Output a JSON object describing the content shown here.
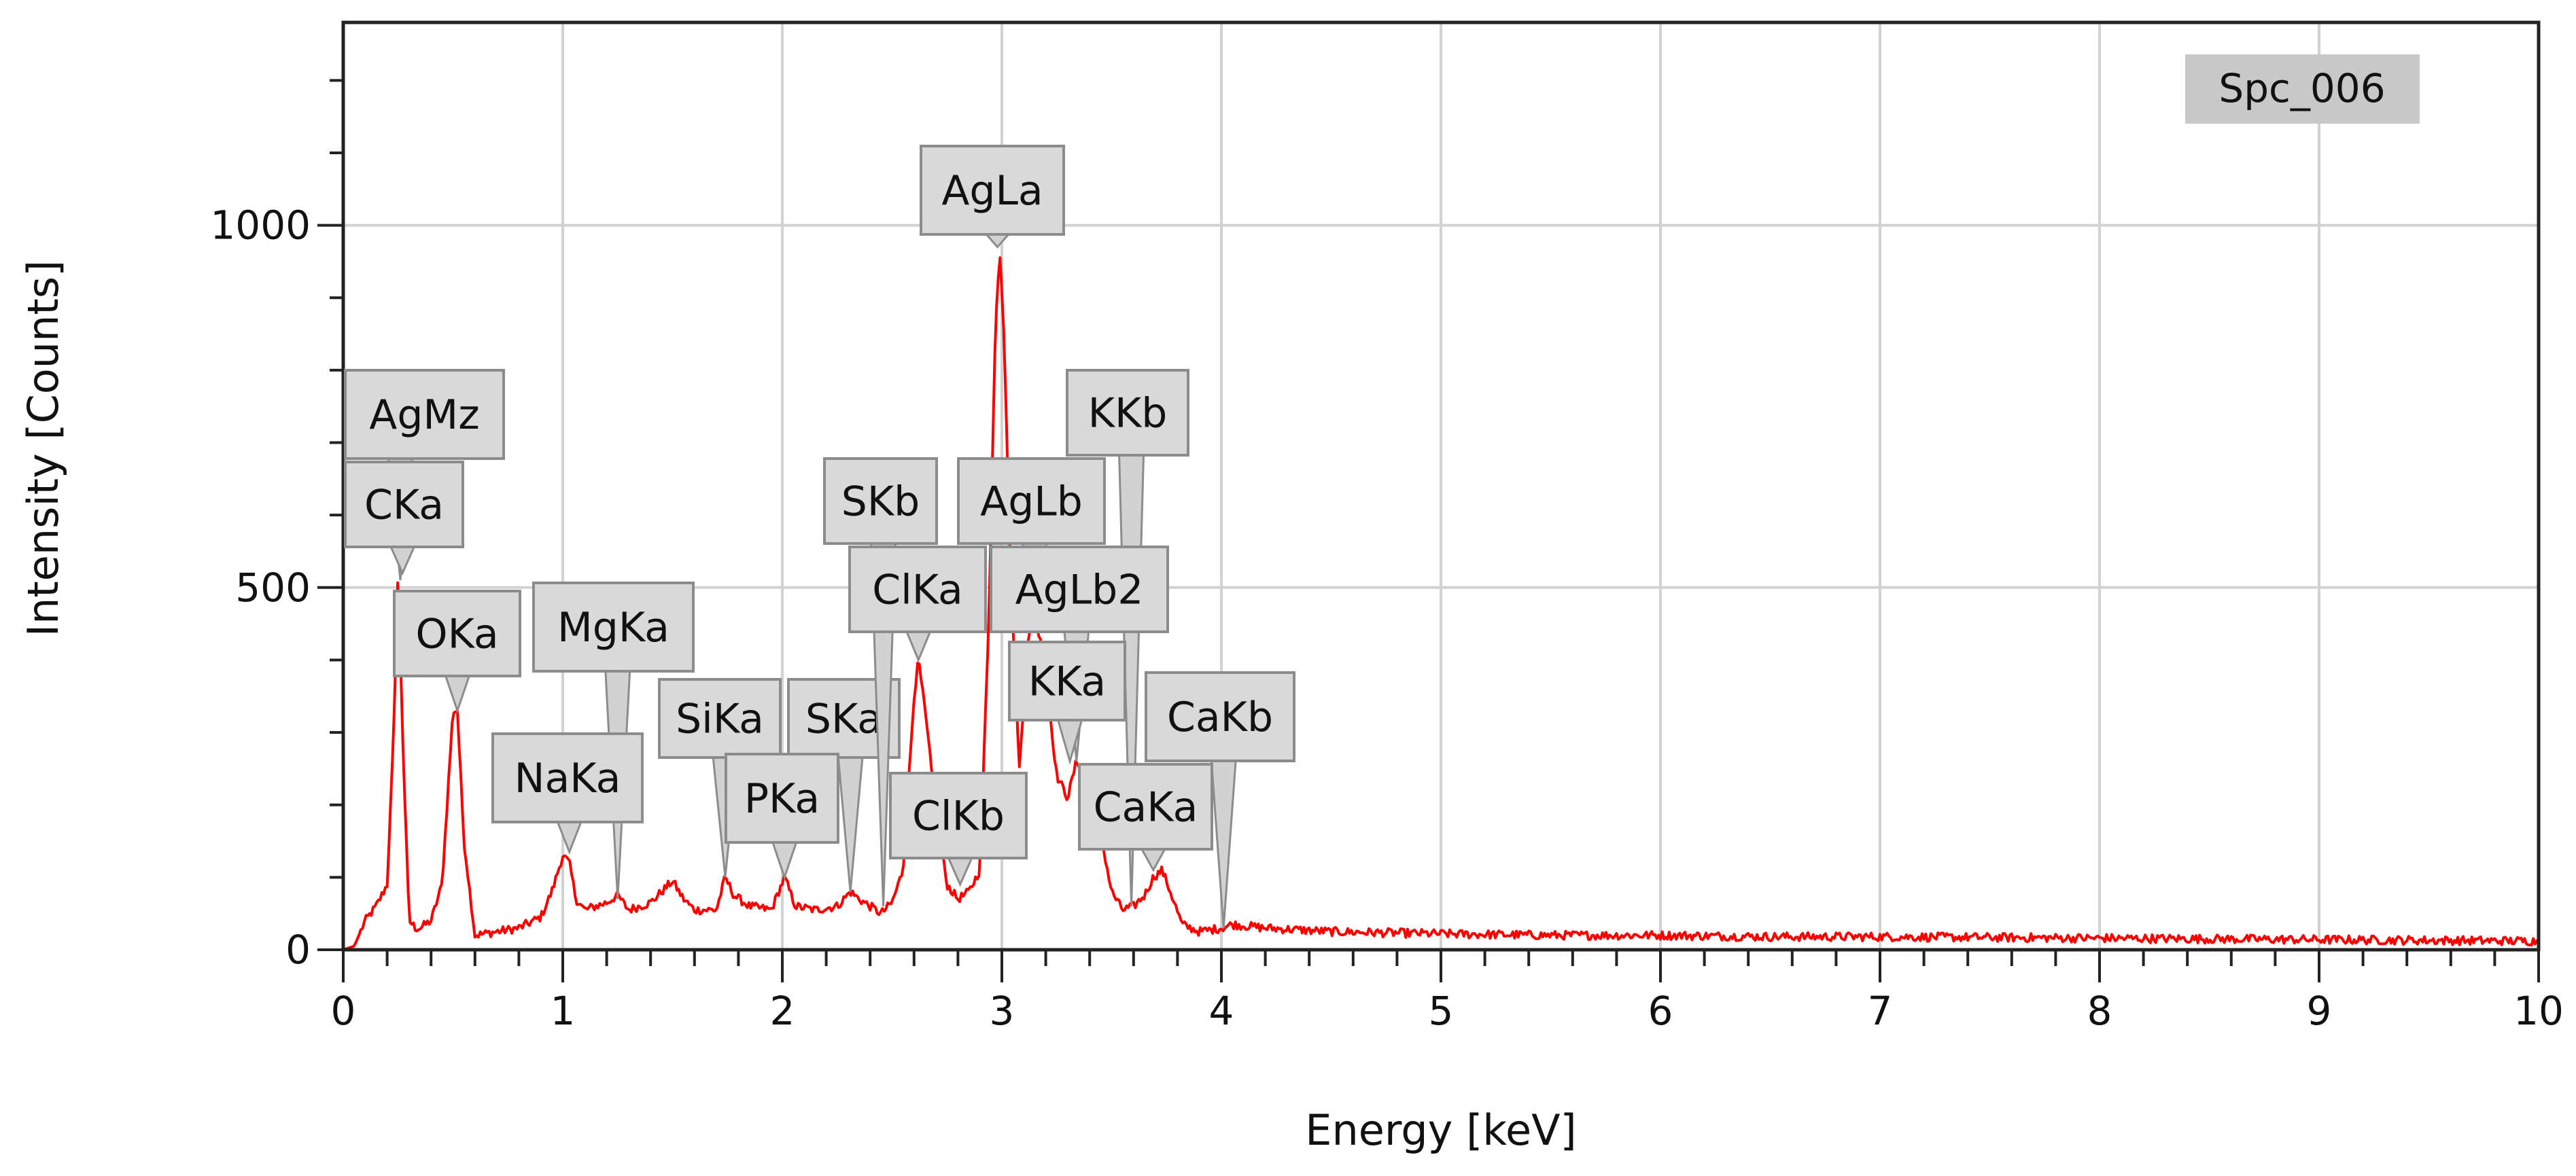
{
  "chart_data": {
    "type": "line",
    "title": "",
    "xlabel": "Energy [keV]",
    "ylabel": "Intensity [Counts]",
    "xlim": [
      0,
      10
    ],
    "ylim": [
      0,
      1280
    ],
    "grid": true,
    "legend": "Spc_006",
    "legend_position": "top-right",
    "x_ticks": [
      "0",
      "1",
      "2",
      "3",
      "4",
      "5",
      "6",
      "7",
      "8",
      "9",
      "10"
    ],
    "y_ticks": [
      "0",
      "500",
      "1000"
    ],
    "series": [
      {
        "name": "Spc_006",
        "color": "#ff0000",
        "noise": 6,
        "x": [
          0,
          0.05,
          0.1,
          0.15,
          0.2,
          0.23,
          0.25,
          0.27,
          0.3,
          0.33,
          0.35,
          0.4,
          0.45,
          0.5,
          0.52,
          0.55,
          0.6,
          0.7,
          0.8,
          0.9,
          0.95,
          1.0,
          1.03,
          1.06,
          1.1,
          1.15,
          1.2,
          1.25,
          1.3,
          1.4,
          1.45,
          1.5,
          1.55,
          1.6,
          1.7,
          1.74,
          1.78,
          1.85,
          1.95,
          2.01,
          2.06,
          2.15,
          2.25,
          2.31,
          2.35,
          2.4,
          2.45,
          2.5,
          2.55,
          2.6,
          2.62,
          2.65,
          2.7,
          2.75,
          2.8,
          2.85,
          2.9,
          2.94,
          2.97,
          2.99,
          3.01,
          3.04,
          3.08,
          3.12,
          3.15,
          3.18,
          3.2,
          3.25,
          3.3,
          3.34,
          3.38,
          3.42,
          3.45,
          3.5,
          3.55,
          3.6,
          3.65,
          3.69,
          3.73,
          3.78,
          3.82,
          3.9,
          4.0,
          4.05,
          4.2,
          4.5,
          5.0,
          5.5,
          6.0,
          6.5,
          7.0,
          7.5,
          8.0,
          8.5,
          9.0,
          9.5,
          10.0
        ],
        "y": [
          0,
          5,
          40,
          60,
          90,
          300,
          530,
          300,
          40,
          30,
          30,
          40,
          90,
          330,
          330,
          150,
          20,
          25,
          30,
          45,
          80,
          130,
          120,
          70,
          55,
          60,
          65,
          75,
          55,
          65,
          80,
          95,
          70,
          55,
          55,
          100,
          75,
          60,
          55,
          100,
          60,
          55,
          60,
          80,
          70,
          60,
          50,
          65,
          110,
          350,
          400,
          330,
          190,
          90,
          70,
          80,
          110,
          450,
          850,
          970,
          850,
          520,
          250,
          430,
          460,
          420,
          380,
          240,
          210,
          260,
          250,
          230,
          160,
          80,
          55,
          60,
          75,
          100,
          110,
          70,
          35,
          25,
          30,
          35,
          30,
          25,
          22,
          20,
          20,
          18,
          18,
          17,
          16,
          15,
          14,
          13,
          12
        ]
      }
    ],
    "peak_labels": [
      {
        "text": "AgMz",
        "energy": 0.26,
        "counts": 510
      },
      {
        "text": "CKa",
        "energy": 0.27,
        "counts": 520
      },
      {
        "text": "OKa",
        "energy": 0.52,
        "counts": 330
      },
      {
        "text": "MgKa",
        "energy": 1.25,
        "counts": 70
      },
      {
        "text": "NaKa",
        "energy": 1.03,
        "counts": 135
      },
      {
        "text": "SiKa",
        "energy": 1.74,
        "counts": 100
      },
      {
        "text": "SKa",
        "energy": 2.31,
        "counts": 80
      },
      {
        "text": "PKa",
        "energy": 2.01,
        "counts": 100
      },
      {
        "text": "SKb",
        "energy": 2.46,
        "counts": 60
      },
      {
        "text": "ClKa",
        "energy": 2.62,
        "counts": 400
      },
      {
        "text": "ClKb",
        "energy": 2.81,
        "counts": 90
      },
      {
        "text": "AgLa",
        "energy": 2.98,
        "counts": 970
      },
      {
        "text": "AgLb",
        "energy": 3.15,
        "counts": 460
      },
      {
        "text": "KKb",
        "energy": 3.59,
        "counts": 60
      },
      {
        "text": "AgLb2",
        "energy": 3.34,
        "counts": 260
      },
      {
        "text": "KKa",
        "energy": 3.31,
        "counts": 260
      },
      {
        "text": "CaKb",
        "energy": 4.01,
        "counts": 30
      },
      {
        "text": "CaKa",
        "energy": 3.69,
        "counts": 110
      }
    ]
  }
}
